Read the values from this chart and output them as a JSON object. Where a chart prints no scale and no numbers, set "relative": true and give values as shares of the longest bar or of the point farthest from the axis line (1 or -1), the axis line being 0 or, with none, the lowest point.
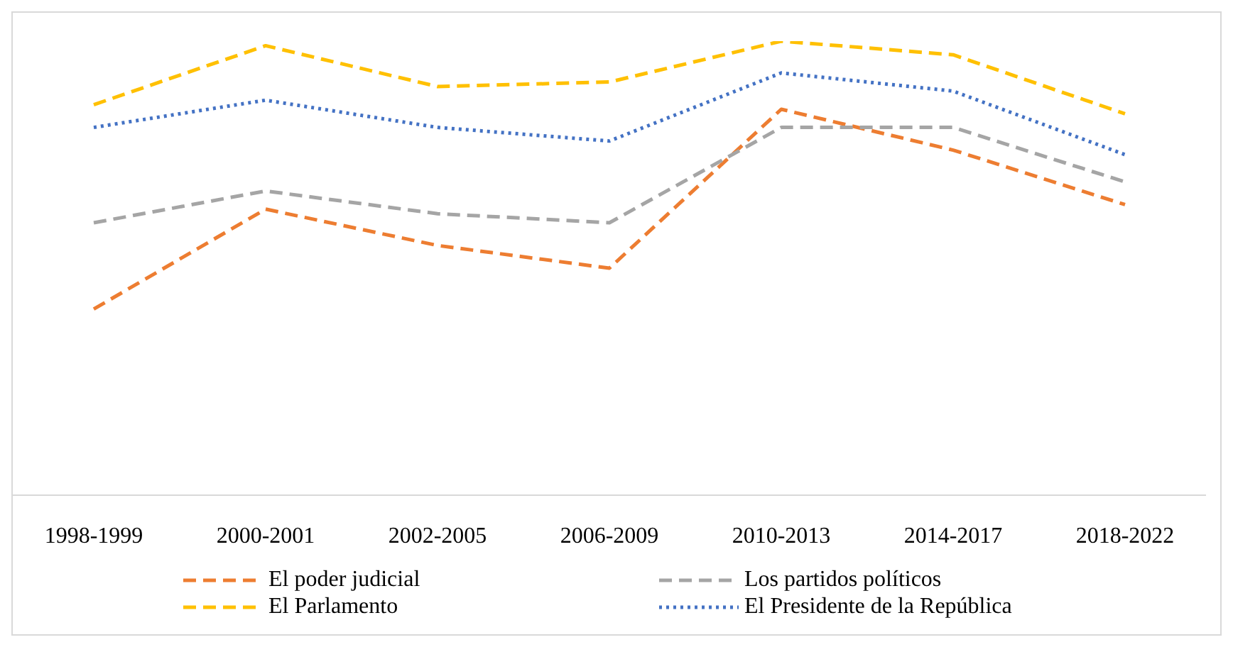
{
  "chart_data": {
    "type": "line",
    "relative": true,
    "categories": [
      "1998-1999",
      "2000-2001",
      "2002-2005",
      "2006-2009",
      "2010-2013",
      "2014-2017",
      "2018-2022"
    ],
    "legend": "bottom",
    "grid": false,
    "marker": "none",
    "series": [
      {
        "name": "El poder judicial",
        "color": "#ed7d31",
        "line_style": "dashed",
        "values": [
          0.41,
          0.63,
          0.55,
          0.5,
          0.85,
          0.76,
          0.64
        ]
      },
      {
        "name": "Los partidos políticos",
        "color": "#a5a5a5",
        "line_style": "dashed",
        "values": [
          0.6,
          0.67,
          0.62,
          0.6,
          0.81,
          0.81,
          0.69
        ]
      },
      {
        "name": "El Parlamento",
        "color": "#ffc000",
        "line_style": "dashed",
        "values": [
          0.86,
          0.99,
          0.9,
          0.91,
          1,
          0.97,
          0.84
        ]
      },
      {
        "name": "El Presidente de la República",
        "color": "#4472c4",
        "line_style": "dotted",
        "values": [
          0.81,
          0.87,
          0.81,
          0.78,
          0.93,
          0.89,
          0.75
        ]
      }
    ]
  }
}
